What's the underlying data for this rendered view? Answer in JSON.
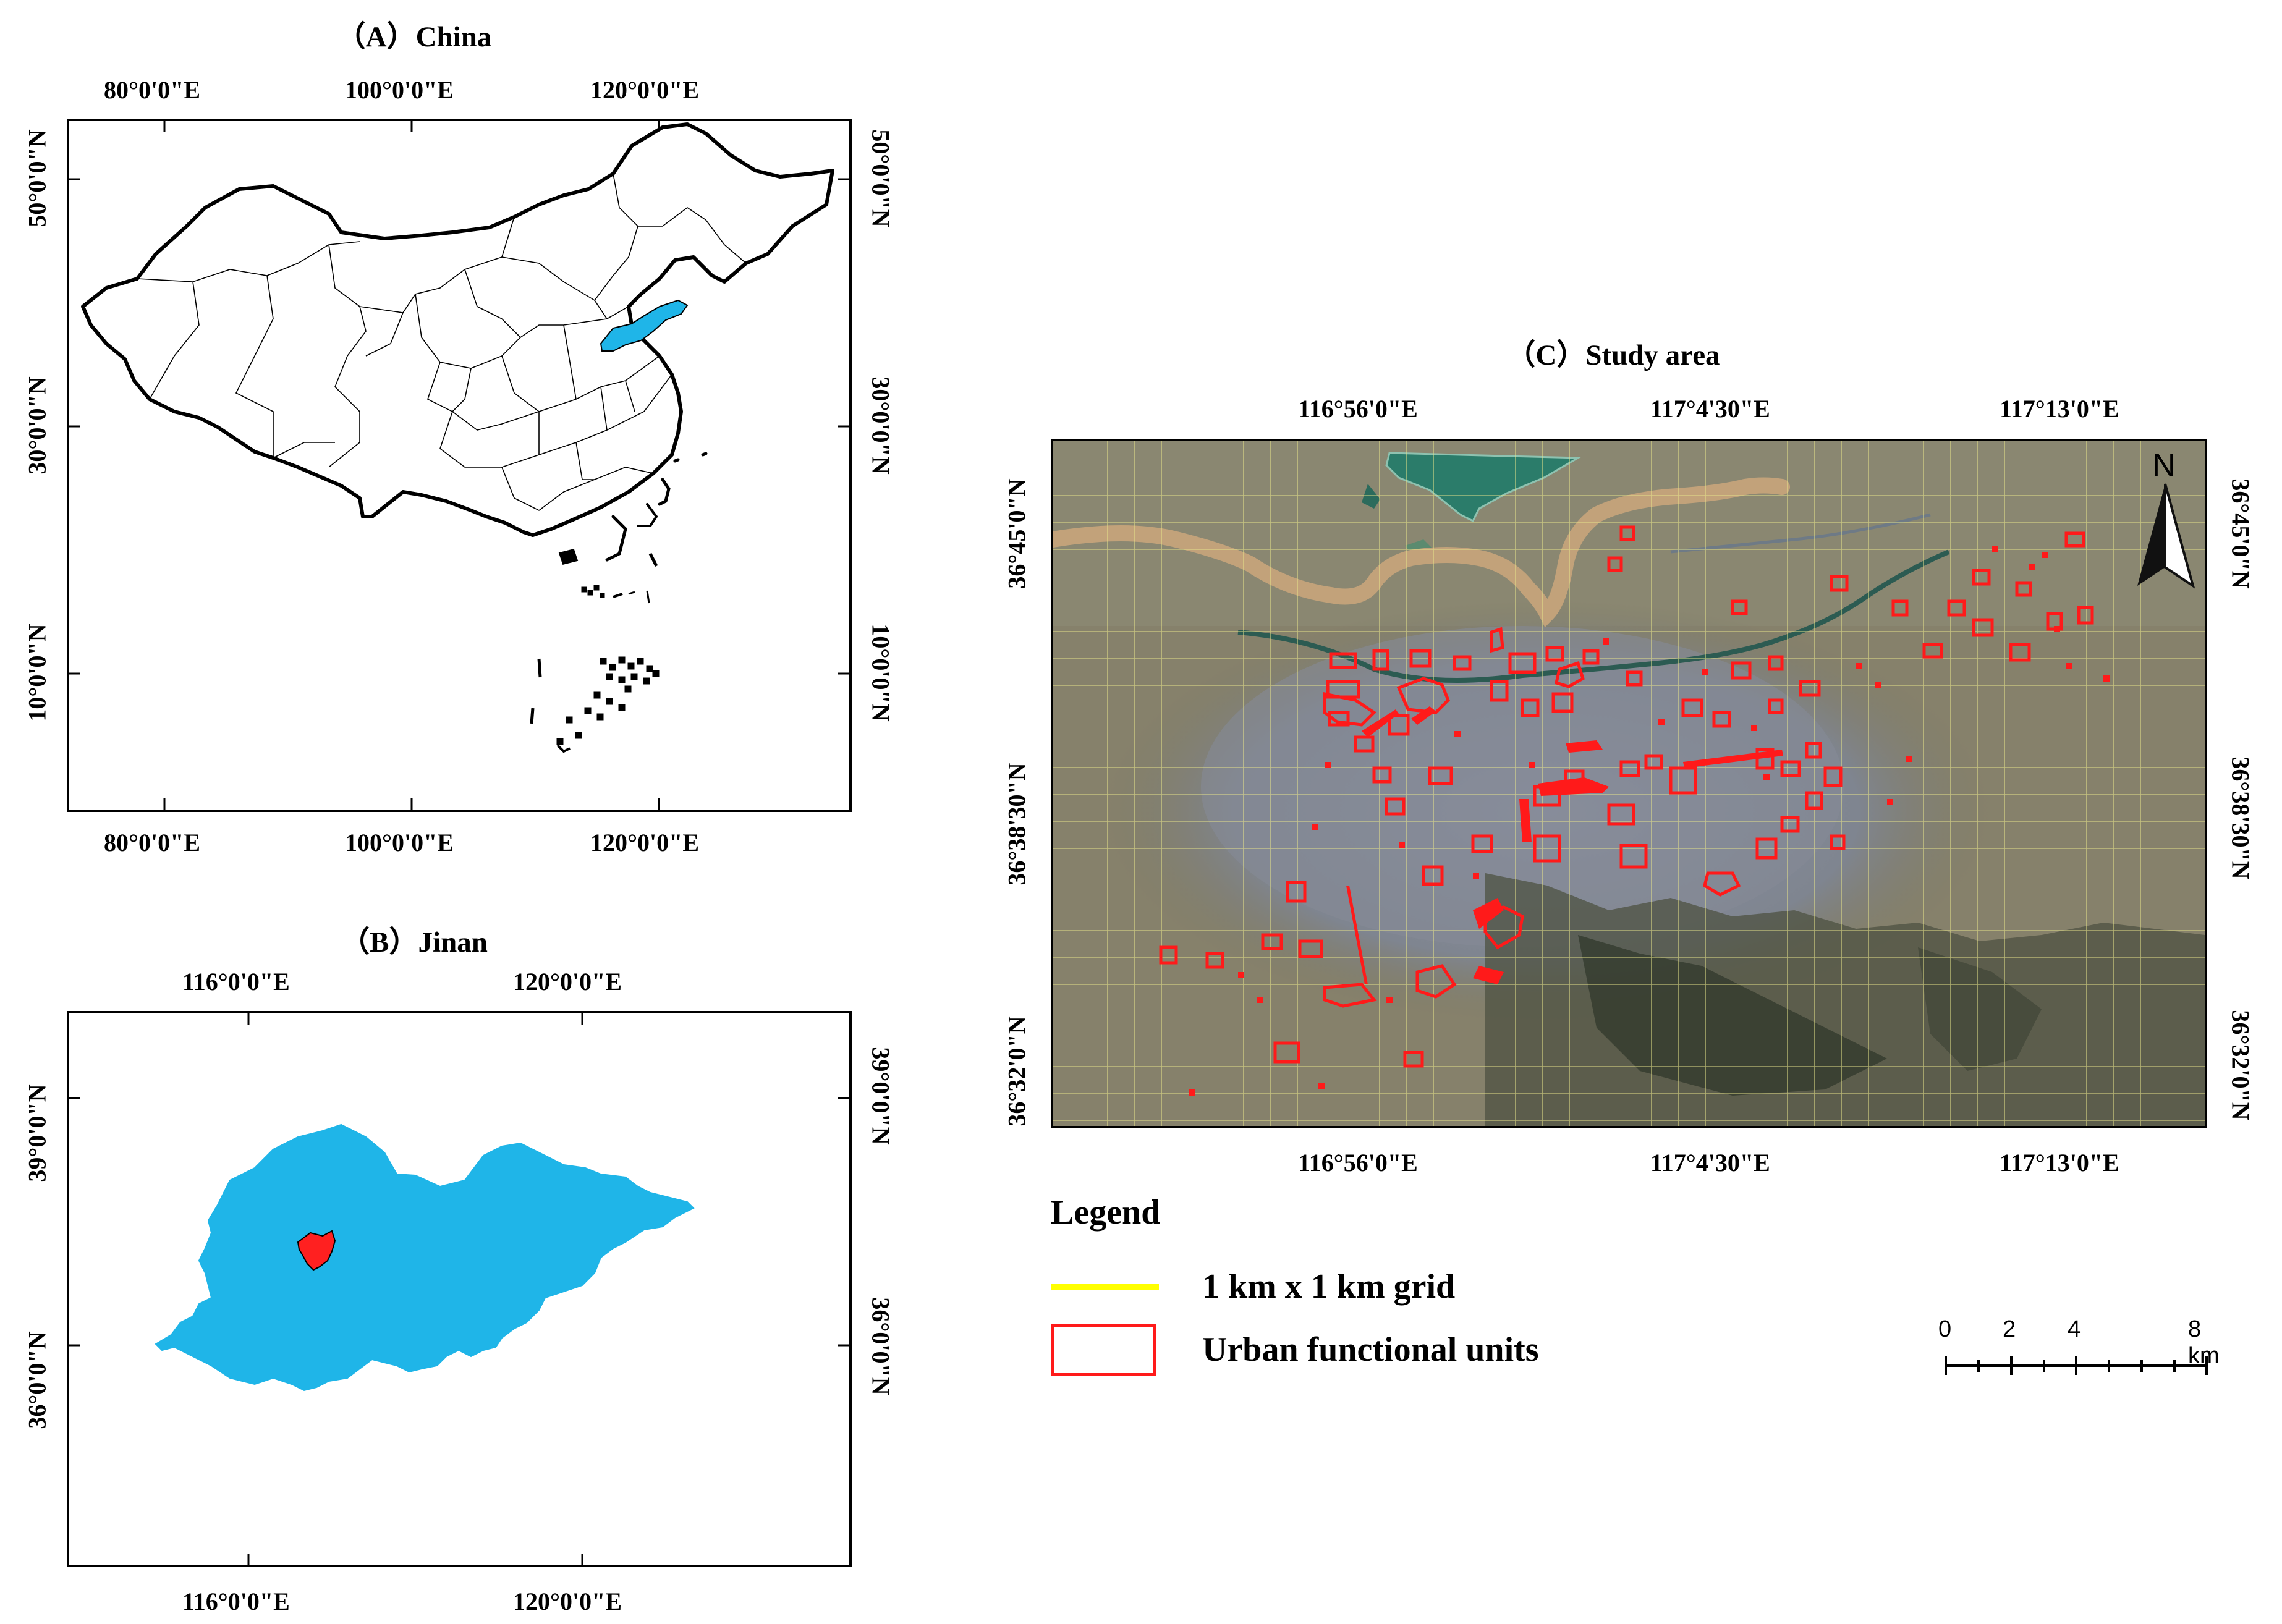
{
  "panel_a": {
    "title": "（A）China",
    "top_lon": [
      "80°0'0\"E",
      "100°0'0\"E",
      "120°0'0\"E"
    ],
    "bottom_lon": [
      "80°0'0\"E",
      "100°0'0\"E",
      "120°0'0\"E"
    ],
    "left_lat": [
      "50°0'0\"N",
      "30°0'0\"N",
      "10°0'0\"N"
    ],
    "right_lat": [
      "50°0'0\"N",
      "30°0'0\"N",
      "10°0'0\"N"
    ],
    "colors": {
      "highlight": "#1fb5e8",
      "border": "#000000"
    }
  },
  "panel_b": {
    "title": "（B）Jinan",
    "top_lon": [
      "116°0'0\"E",
      "120°0'0\"E"
    ],
    "bottom_lon": [
      "116°0'0\"E",
      "120°0'0\"E"
    ],
    "left_lat": [
      "39°0'0\"N",
      "36°0'0\"N"
    ],
    "right_lat": [
      "39°0'0\"N",
      "36°0'0\"N"
    ],
    "colors": {
      "province": "#1fb5e8",
      "city": "#ff2020"
    }
  },
  "panel_c": {
    "title": "（C）Study area",
    "top_lon": [
      "116°56'0\"E",
      "117°4'30\"E",
      "117°13'0\"E"
    ],
    "bottom_lon": [
      "116°56'0\"E",
      "117°4'30\"E",
      "117°13'0\"E"
    ],
    "left_lat": [
      "36°45'0\"N",
      "36°38'30\"N",
      "36°32'0\"N"
    ],
    "right_lat": [
      "36°45'0\"N",
      "36°38'30\"N",
      "36°32'0\"N"
    ],
    "north_label": "N",
    "colors": {
      "grid": "#e6e38a",
      "units": "#ff1a1a",
      "river": "#c2a27a",
      "lake": "#2b7c6a"
    }
  },
  "legend": {
    "title": "Legend",
    "items": [
      {
        "label": "1 km x 1 km grid",
        "color": "#ffff00"
      },
      {
        "label": "Urban functional units",
        "color": "#ff1a1a"
      }
    ]
  },
  "scale_bar": {
    "labels": [
      "0",
      "2",
      "4",
      "8 km"
    ]
  }
}
